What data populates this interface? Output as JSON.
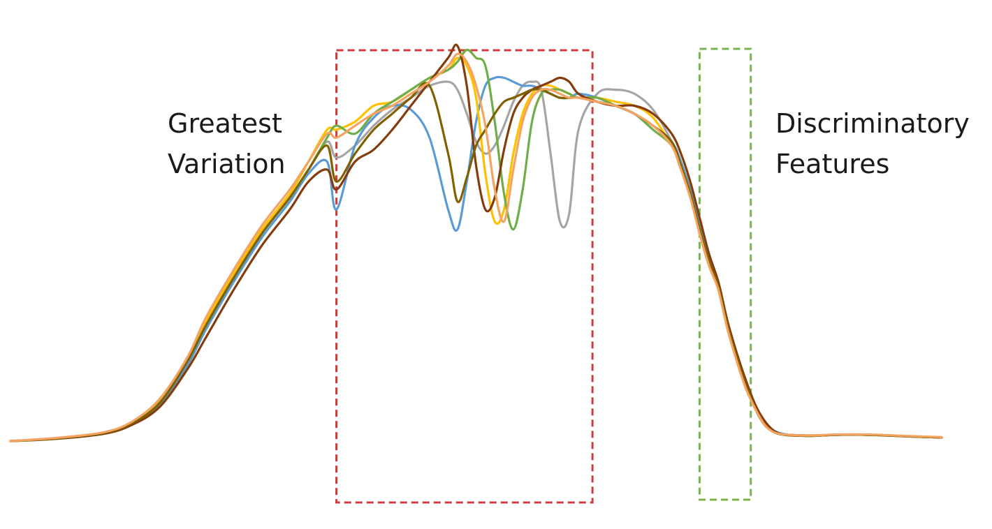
{
  "annotations": {
    "left": {
      "line1": "Greatest",
      "line2": "Variation"
    },
    "right": {
      "line1": "Discriminatory",
      "line2": "Features"
    }
  },
  "colors": {
    "region_variation": "#d23b3b",
    "region_discriminatory": "#7ab24e"
  },
  "chart_data": {
    "type": "line",
    "title": "",
    "xlabel": "",
    "ylabel": "",
    "xlim": [
      0,
      100
    ],
    "ylim": [
      0,
      100
    ],
    "grid": false,
    "axes_visible": false,
    "x": [
      0,
      5,
      10,
      13,
      16,
      19,
      21,
      24,
      27,
      30,
      32,
      34,
      35,
      37,
      39,
      41,
      43,
      45,
      47,
      48,
      49,
      50,
      51,
      52,
      53,
      54,
      55,
      56,
      57,
      58,
      59,
      60,
      61,
      63,
      65,
      67,
      69,
      71,
      72,
      73,
      74,
      75,
      76,
      77,
      78,
      79,
      80,
      81,
      82,
      83,
      84,
      86,
      88,
      90,
      93,
      96,
      100
    ],
    "regions": [
      {
        "label": "Greatest Variation",
        "x_range": [
          35,
          62.5
        ],
        "style": "dashed",
        "color": "#d23b3b"
      },
      {
        "label": "Discriminatory Features",
        "x_range": [
          74,
          79.5
        ],
        "style": "dashed",
        "color": "#7ab24e"
      }
    ],
    "series": [
      {
        "color": "#a5a5a5",
        "values": [
          0,
          0.7,
          2,
          4.5,
          10,
          20,
          29,
          41,
          52,
          61,
          68,
          75,
          71,
          74,
          79,
          83,
          86,
          89,
          90,
          88,
          82,
          75,
          72,
          74,
          79,
          85,
          89,
          90,
          88,
          72,
          55,
          57,
          78,
          87,
          88,
          87,
          83,
          75,
          69,
          62,
          53,
          45,
          39,
          29,
          21,
          14,
          8,
          4,
          2.2,
          1.6,
          1.4,
          1.3,
          1.5,
          1.6,
          1.5,
          1.2,
          0.9
        ]
      },
      {
        "color": "#5b9bd5",
        "values": [
          0,
          0.7,
          2,
          4.2,
          9,
          19,
          28,
          40,
          51,
          60,
          67,
          70,
          58,
          74,
          81,
          84,
          83,
          76,
          58,
          53,
          65,
          80,
          89,
          91,
          91,
          90,
          89,
          89,
          88,
          87,
          86,
          86,
          87,
          86,
          84,
          82,
          79,
          75,
          70,
          63,
          54,
          46,
          40,
          30,
          22,
          15,
          9,
          5,
          2.6,
          1.8,
          1.5,
          1.4,
          1.5,
          1.6,
          1.5,
          1.2,
          0.9
        ]
      },
      {
        "color": "#ffc000",
        "values": [
          0,
          0.6,
          2,
          4.5,
          10,
          21,
          30,
          42,
          53,
          62,
          70,
          78,
          78,
          80,
          84,
          85,
          88,
          91,
          93,
          96,
          94,
          86,
          67,
          55,
          58,
          72,
          82,
          87,
          89,
          89,
          88,
          87,
          86,
          86,
          85,
          84,
          81,
          74,
          69,
          62,
          52,
          44,
          38,
          28,
          20,
          13,
          8,
          4,
          2.2,
          1.6,
          1.4,
          1.3,
          1.5,
          1.6,
          1.5,
          1.2,
          0.9
        ]
      },
      {
        "color": "#70ad47",
        "values": [
          0,
          0.6,
          2,
          4.4,
          9.5,
          20,
          29,
          41,
          52,
          61,
          68,
          76,
          79,
          77,
          82,
          85,
          88,
          91,
          93,
          95,
          98,
          96,
          94,
          80,
          62,
          53,
          63,
          80,
          87,
          88,
          88,
          87,
          86,
          86,
          84,
          82,
          78,
          74,
          68,
          62,
          53,
          45,
          39,
          29,
          21,
          14,
          8,
          4,
          2.2,
          1.6,
          1.4,
          1.3,
          1.5,
          1.6,
          1.5,
          1.2,
          0.9
        ]
      },
      {
        "color": "#843c0c",
        "values": [
          0,
          0.6,
          1.8,
          4,
          8.5,
          18,
          26,
          38,
          49,
          58,
          65,
          68,
          63,
          70,
          73,
          78,
          84,
          90,
          96,
          99,
          89,
          69,
          58,
          61,
          73,
          82,
          86,
          88,
          89,
          90,
          91,
          90,
          87,
          85,
          84,
          84,
          82,
          77,
          72,
          65,
          56,
          47,
          40,
          30,
          22,
          15,
          9,
          5,
          2.5,
          1.7,
          1.5,
          1.4,
          1.5,
          1.6,
          1.5,
          1.2,
          0.9
        ]
      },
      {
        "color": "#806000",
        "values": [
          0,
          0.7,
          2,
          4.4,
          9.5,
          20,
          29,
          41,
          52,
          61,
          68,
          74,
          65,
          72,
          78,
          82,
          86,
          89,
          72,
          60,
          66,
          74,
          78,
          82,
          85,
          86,
          87,
          88,
          88,
          87,
          86,
          86,
          86,
          85,
          84,
          82,
          79,
          75,
          69,
          62,
          53,
          45,
          39,
          29,
          21,
          14,
          8,
          4,
          2.2,
          1.6,
          1.4,
          1.3,
          1.5,
          1.6,
          1.5,
          1.2,
          0.9
        ]
      },
      {
        "color": "#f4a460",
        "values": [
          0,
          0.8,
          2.2,
          4.8,
          10.5,
          21,
          31,
          43,
          54,
          63,
          70,
          77,
          76,
          79,
          82,
          84,
          87,
          90,
          94,
          97,
          95,
          89,
          79,
          63,
          55,
          68,
          80,
          86,
          88,
          88,
          87,
          86,
          86,
          85,
          84,
          82,
          79,
          74,
          68,
          61,
          52,
          44,
          38,
          28,
          20,
          13,
          8,
          4,
          2.2,
          1.7,
          1.5,
          1.4,
          1.6,
          1.7,
          1.6,
          1.3,
          1.0
        ]
      }
    ]
  }
}
